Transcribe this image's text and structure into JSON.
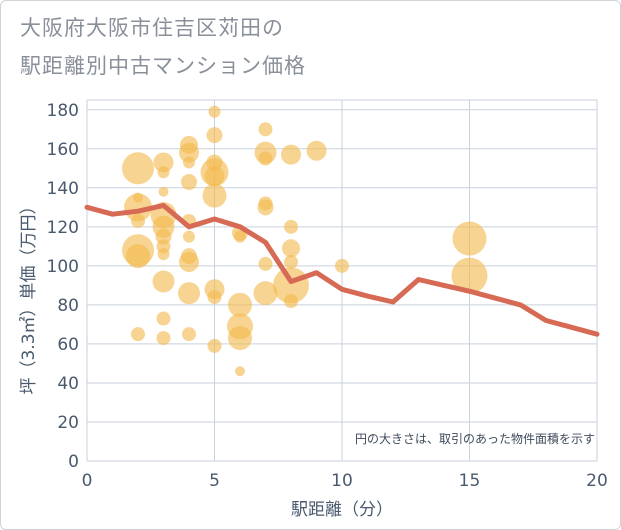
{
  "title": {
    "line1": "大阪府大阪市住吉区苅田の",
    "line2": "駅距離別中古マンション価格"
  },
  "chart_data": {
    "type": "scatter",
    "xlabel": "駅距離（分）",
    "ylabel": "坪（3.3㎡）単価（万円）",
    "xlim": [
      0,
      20
    ],
    "ylim": [
      0,
      185
    ],
    "xticks": [
      "0",
      "5",
      "10",
      "15",
      "20"
    ],
    "yticks": [
      "0",
      "20",
      "40",
      "60",
      "80",
      "100",
      "120",
      "140",
      "160",
      "180"
    ],
    "grid": true,
    "annotation": "円の大きさは、取引のあった物件面積を示す",
    "colors": {
      "bubble": "#f2b94e",
      "line": "#d76a55",
      "grid": "#c9d2dc",
      "axis_text": "#4a5a6e"
    },
    "bubbles": [
      {
        "x": 2,
        "y": 150,
        "size": 1.6
      },
      {
        "x": 2,
        "y": 130,
        "size": 1.4
      },
      {
        "x": 2,
        "y": 135,
        "size": 0.5
      },
      {
        "x": 2,
        "y": 123,
        "size": 0.7
      },
      {
        "x": 2,
        "y": 108,
        "size": 1.6
      },
      {
        "x": 2,
        "y": 105,
        "size": 1.2
      },
      {
        "x": 2,
        "y": 65,
        "size": 0.7
      },
      {
        "x": 3,
        "y": 153,
        "size": 1.0
      },
      {
        "x": 3,
        "y": 148,
        "size": 0.6
      },
      {
        "x": 3,
        "y": 138,
        "size": 0.5
      },
      {
        "x": 3,
        "y": 126,
        "size": 1.3
      },
      {
        "x": 3,
        "y": 120,
        "size": 1.1
      },
      {
        "x": 3,
        "y": 115,
        "size": 0.8
      },
      {
        "x": 3,
        "y": 110,
        "size": 0.7
      },
      {
        "x": 3,
        "y": 106,
        "size": 0.6
      },
      {
        "x": 3,
        "y": 92,
        "size": 1.1
      },
      {
        "x": 3,
        "y": 73,
        "size": 0.7
      },
      {
        "x": 3,
        "y": 63,
        "size": 0.7
      },
      {
        "x": 4,
        "y": 162,
        "size": 0.9
      },
      {
        "x": 4,
        "y": 158,
        "size": 1.0
      },
      {
        "x": 4,
        "y": 153,
        "size": 0.6
      },
      {
        "x": 4,
        "y": 143,
        "size": 0.8
      },
      {
        "x": 4,
        "y": 123,
        "size": 0.7
      },
      {
        "x": 4,
        "y": 115,
        "size": 0.6
      },
      {
        "x": 4,
        "y": 105,
        "size": 0.8
      },
      {
        "x": 4,
        "y": 102,
        "size": 1.0
      },
      {
        "x": 4,
        "y": 86,
        "size": 1.1
      },
      {
        "x": 4,
        "y": 65,
        "size": 0.7
      },
      {
        "x": 5,
        "y": 179,
        "size": 0.6
      },
      {
        "x": 5,
        "y": 167,
        "size": 0.8
      },
      {
        "x": 5,
        "y": 153,
        "size": 0.8
      },
      {
        "x": 5,
        "y": 148,
        "size": 1.4
      },
      {
        "x": 5,
        "y": 146,
        "size": 1.0
      },
      {
        "x": 5,
        "y": 136,
        "size": 1.2
      },
      {
        "x": 5,
        "y": 88,
        "size": 1.0
      },
      {
        "x": 5,
        "y": 84,
        "size": 0.7
      },
      {
        "x": 5,
        "y": 59,
        "size": 0.7
      },
      {
        "x": 6,
        "y": 117,
        "size": 0.8
      },
      {
        "x": 6,
        "y": 115,
        "size": 0.6
      },
      {
        "x": 6,
        "y": 80,
        "size": 1.2
      },
      {
        "x": 6,
        "y": 69,
        "size": 1.3
      },
      {
        "x": 6,
        "y": 63,
        "size": 1.2
      },
      {
        "x": 6,
        "y": 46,
        "size": 0.5
      },
      {
        "x": 7,
        "y": 170,
        "size": 0.7
      },
      {
        "x": 7,
        "y": 158,
        "size": 1.1
      },
      {
        "x": 7,
        "y": 155,
        "size": 0.7
      },
      {
        "x": 7,
        "y": 132,
        "size": 0.7
      },
      {
        "x": 7,
        "y": 130,
        "size": 0.8
      },
      {
        "x": 7,
        "y": 101,
        "size": 0.7
      },
      {
        "x": 7,
        "y": 86,
        "size": 1.2
      },
      {
        "x": 8,
        "y": 157,
        "size": 1.0
      },
      {
        "x": 8,
        "y": 120,
        "size": 0.7
      },
      {
        "x": 8,
        "y": 109,
        "size": 0.9
      },
      {
        "x": 8,
        "y": 102,
        "size": 0.7
      },
      {
        "x": 8,
        "y": 90,
        "size": 1.8
      },
      {
        "x": 8,
        "y": 82,
        "size": 0.7
      },
      {
        "x": 9,
        "y": 159,
        "size": 1.0
      },
      {
        "x": 10,
        "y": 100,
        "size": 0.7
      },
      {
        "x": 15,
        "y": 114,
        "size": 1.7
      },
      {
        "x": 15,
        "y": 95,
        "size": 1.8
      }
    ],
    "line": {
      "x": [
        0,
        1,
        2,
        3,
        4,
        5,
        6,
        7,
        8,
        9,
        10,
        11,
        12,
        13,
        14,
        15,
        16,
        17,
        18,
        19,
        20
      ],
      "y": [
        130,
        126.5,
        128,
        131,
        120,
        124,
        120,
        112,
        92,
        96.5,
        88,
        84.5,
        81.5,
        93,
        90,
        87,
        83.5,
        80,
        72,
        68.5,
        65
      ]
    }
  }
}
